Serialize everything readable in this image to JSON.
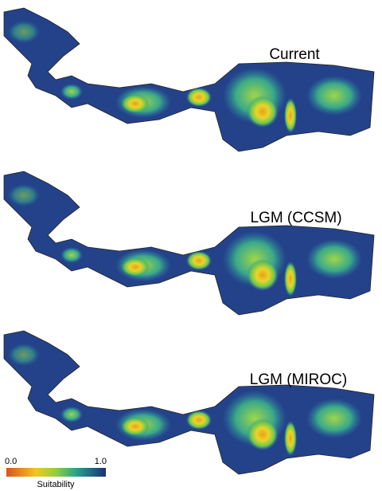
{
  "panels": [
    {
      "title": "Current"
    },
    {
      "title": "LGM (CCSM)"
    },
    {
      "title": "LGM (MIROC)"
    }
  ],
  "legend": {
    "min_label": "0.0",
    "max_label": "1.0",
    "title": "Suitability"
  }
}
